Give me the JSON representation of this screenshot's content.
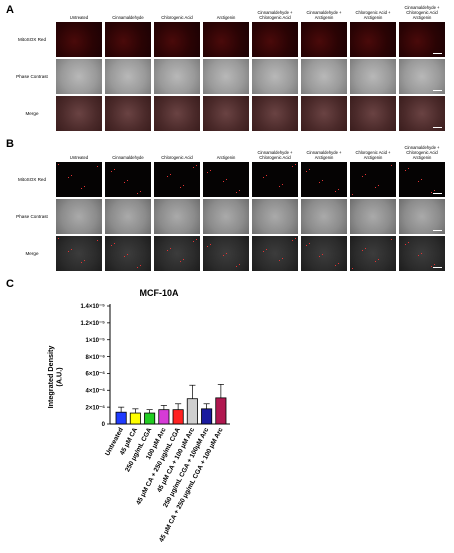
{
  "panels": {
    "a": {
      "letter": "A"
    },
    "b": {
      "letter": "B"
    },
    "c": {
      "letter": "C"
    }
  },
  "columns": [
    "Untreated",
    "Cinnamaldehyde",
    "Chlorogenic Acid",
    "Arctigenin",
    "Cinnamaldehyde + Chlorogenic Acid",
    "Cinnamaldehyde + Arctigenin",
    "Chlorogenic Acid + Arctigenin",
    "Cinnamaldehyde + Chlorogenic Acid Arctigenin"
  ],
  "rows": [
    "MitoSOX Red",
    "Phase Contrast",
    "Merge"
  ],
  "chart_data": {
    "type": "bar",
    "title": "MCF-10A",
    "ylabel": "Integrated Density (A.U.)",
    "xlabel": "",
    "ylim": [
      0,
      1.4e-05
    ],
    "yticks": [
      0,
      2e-06,
      4e-06,
      6e-06,
      8e-06,
      1e-05,
      1.2e-05,
      1.4e-05
    ],
    "ytick_labels": [
      "0",
      "2×10⁻⁶",
      "4×10⁻⁶",
      "6×10⁻⁶",
      "8×10⁻⁶",
      "1×10⁻⁵",
      "1.2×10⁻⁵",
      "1.4×10⁻⁵"
    ],
    "categories": [
      "Untreated",
      "45 μM CA",
      "250 μg/mL CGA",
      "100 μM Arc",
      "45 μM CA + 250 μg/mL CGA",
      "45 μM CA + 100 μM Arc",
      "250 μg/mL CGA + 100μM Arc",
      "45 μM CA + 250 μg/mL CGA + 100 μM Arc"
    ],
    "values": [
      1.4e-06,
      1.3e-06,
      1.3e-06,
      1.7e-06,
      1.7e-06,
      3e-06,
      1.8e-06,
      3.1e-06
    ],
    "errors": [
      6e-07,
      5e-07,
      4e-07,
      5e-07,
      7e-07,
      1.6e-06,
      6e-07,
      1.6e-06
    ],
    "colors": [
      "#1f3bff",
      "#ffff00",
      "#22cc22",
      "#d63bd6",
      "#ff2222",
      "#cfcfcf",
      "#1a1a9e",
      "#b0174f"
    ]
  }
}
